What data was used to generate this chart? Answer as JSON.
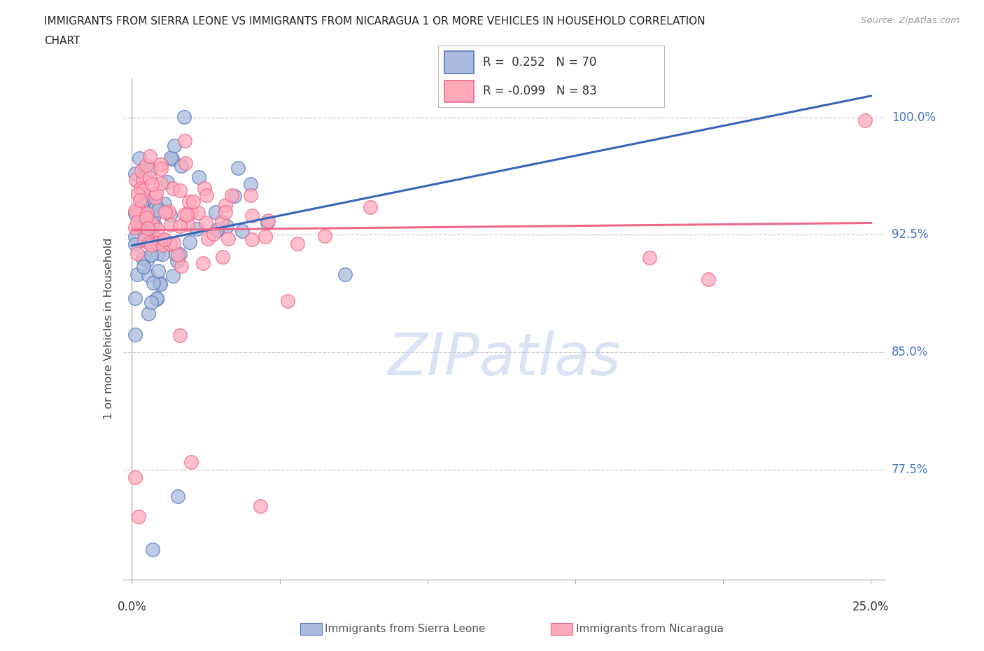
{
  "title_line1": "IMMIGRANTS FROM SIERRA LEONE VS IMMIGRANTS FROM NICARAGUA 1 OR MORE VEHICLES IN HOUSEHOLD CORRELATION",
  "title_line2": "CHART",
  "source": "Source: ZipAtlas.com",
  "ylabel": "1 or more Vehicles in Household",
  "ytick_labels": [
    "100.0%",
    "92.5%",
    "85.0%",
    "77.5%"
  ],
  "ytick_values": [
    1.0,
    0.925,
    0.85,
    0.775
  ],
  "xlim_min": 0.0,
  "xlim_max": 0.255,
  "ylim_min": 0.705,
  "ylim_max": 1.025,
  "legend_blue_R": " 0.252",
  "legend_blue_N": "70",
  "legend_pink_R": "-0.099",
  "legend_pink_N": "83",
  "blue_fill": "#AABBDD",
  "blue_edge": "#5577BB",
  "pink_fill": "#FFAABB",
  "pink_edge": "#EE6688",
  "blue_line_color": "#3366BB",
  "pink_line_color": "#EE6688",
  "watermark_text": "ZIPatlas",
  "watermark_color": "#BBCCEE",
  "legend_box_color": "#999999",
  "ytick_color": "#4472C4",
  "title_color": "#222222",
  "source_color": "#999999"
}
